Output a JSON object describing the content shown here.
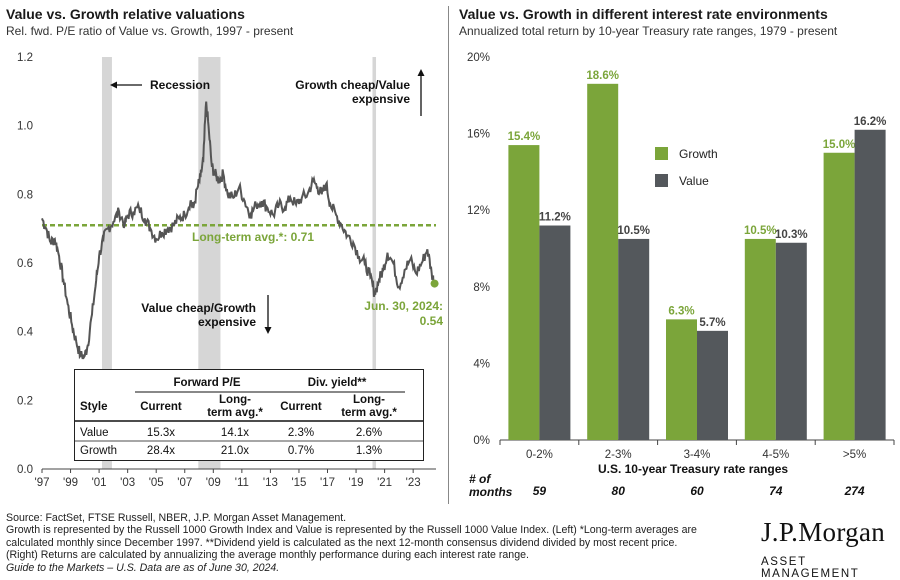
{
  "left": {
    "title": "Value vs. Growth relative valuations",
    "subtitle": "Rel. fwd. P/E ratio of Value vs. Growth, 1997 - present",
    "recession_label": "Recession",
    "growth_cheap_label": [
      "Growth cheap/Value",
      "expensive"
    ],
    "value_cheap_label": [
      "Value cheap/Growth",
      "expensive"
    ],
    "avg_label": "Long-term avg.*:  0.71",
    "current_label": [
      "Jun. 30, 2024:",
      "0.54"
    ],
    "table": {
      "group_headers": [
        "Forward P/E",
        "Div. yield**"
      ],
      "col_headers": [
        "Style",
        "Current",
        "Long-",
        "term avg.*",
        "Current",
        "Long-",
        "term avg.*"
      ],
      "rows": [
        [
          "Value",
          "15.3x",
          "14.1x",
          "2.3%",
          "2.6%"
        ],
        [
          "Growth",
          "28.4x",
          "21.0x",
          "0.7%",
          "1.3%"
        ]
      ]
    }
  },
  "right": {
    "title": "Value vs. Growth in different interest rate environments",
    "subtitle": "Annualized total return by 10-year Treasury rate ranges, 1979 - present",
    "months_label": [
      "# of",
      "months"
    ],
    "months": [
      "59",
      "80",
      "60",
      "74",
      "274"
    ]
  },
  "chart_data": [
    {
      "type": "line",
      "title": "Value vs. Growth relative valuations",
      "xlabel": "",
      "ylabel": "",
      "ylim": [
        0,
        1.2
      ],
      "yticks": [
        "0.0",
        "0.2",
        "0.4",
        "0.6",
        "0.8",
        "1.0",
        "1.2"
      ],
      "xticks": [
        "'97",
        "'99",
        "'01",
        "'03",
        "'05",
        "'07",
        "'09",
        "'11",
        "'13",
        "'15",
        "'17",
        "'19",
        "'21",
        "'23"
      ],
      "xlim": [
        1997,
        2024.6
      ],
      "recessions": [
        [
          2001.2,
          2001.9
        ],
        [
          2007.95,
          2009.5
        ],
        [
          2020.15,
          2020.4
        ]
      ],
      "long_term_avg": 0.71,
      "series": [
        {
          "color": "#555555",
          "x": [
            1997.0,
            1997.3,
            1997.6,
            1997.9,
            1998.2,
            1998.5,
            1998.8,
            1999.1,
            1999.4,
            1999.7,
            2000.0,
            2000.2,
            2000.5,
            2000.8,
            2001.0,
            2001.3,
            2001.6,
            2002.0,
            2002.4,
            2002.8,
            2003.0,
            2003.4,
            2003.8,
            2004.2,
            2004.6,
            2005.0,
            2005.4,
            2005.8,
            2006.2,
            2006.6,
            2007.0,
            2007.4,
            2007.6,
            2007.9,
            2008.1,
            2008.3,
            2008.5,
            2008.7,
            2008.9,
            2009.1,
            2009.4,
            2009.7,
            2010.0,
            2010.4,
            2010.8,
            2011.2,
            2011.6,
            2012.0,
            2012.4,
            2012.8,
            2013.2,
            2013.6,
            2014.0,
            2014.4,
            2014.8,
            2015.2,
            2015.6,
            2016.0,
            2016.3,
            2016.6,
            2016.9,
            2017.2,
            2017.6,
            2018.0,
            2018.4,
            2018.8,
            2019.2,
            2019.6,
            2020.0,
            2020.3,
            2020.6,
            2020.9,
            2021.2,
            2021.6,
            2022.0,
            2022.4,
            2022.8,
            2023.2,
            2023.6,
            2024.0,
            2024.3,
            2024.5
          ],
          "values": [
            0.73,
            0.7,
            0.66,
            0.67,
            0.62,
            0.55,
            0.48,
            0.42,
            0.37,
            0.33,
            0.33,
            0.36,
            0.45,
            0.55,
            0.62,
            0.67,
            0.7,
            0.72,
            0.75,
            0.71,
            0.74,
            0.75,
            0.76,
            0.73,
            0.7,
            0.67,
            0.69,
            0.7,
            0.71,
            0.73,
            0.74,
            0.78,
            0.76,
            0.82,
            0.85,
            0.9,
            1.07,
            0.98,
            0.88,
            0.86,
            0.84,
            0.86,
            0.8,
            0.79,
            0.82,
            0.78,
            0.74,
            0.77,
            0.78,
            0.76,
            0.74,
            0.77,
            0.76,
            0.79,
            0.77,
            0.79,
            0.8,
            0.84,
            0.82,
            0.8,
            0.83,
            0.77,
            0.74,
            0.71,
            0.68,
            0.66,
            0.62,
            0.6,
            0.56,
            0.51,
            0.55,
            0.58,
            0.63,
            0.6,
            0.53,
            0.58,
            0.61,
            0.57,
            0.6,
            0.64,
            0.57,
            0.54
          ]
        }
      ]
    },
    {
      "type": "bar",
      "title": "Value vs. Growth in different interest rate environments",
      "xlabel": "U.S. 10-year Treasury rate ranges",
      "ylabel": "",
      "ylim": [
        0,
        20
      ],
      "yticks": [
        "0%",
        "4%",
        "8%",
        "12%",
        "16%",
        "20%"
      ],
      "categories": [
        "0-2%",
        "2-3%",
        "3-4%",
        "4-5%",
        ">5%"
      ],
      "legend_position": "upper-middle",
      "series": [
        {
          "name": "Growth",
          "color": "#7ba53a",
          "values": [
            15.4,
            18.6,
            6.3,
            10.5,
            15.0
          ],
          "labels": [
            "15.4%",
            "18.6%",
            "6.3%",
            "10.5%",
            "15.0%"
          ]
        },
        {
          "name": "Value",
          "color": "#54585c",
          "values": [
            11.2,
            10.5,
            5.7,
            10.3,
            16.2
          ],
          "labels": [
            "11.2%",
            "10.5%",
            "5.7%",
            "10.3%",
            "16.2%"
          ]
        }
      ]
    }
  ],
  "footnotes": [
    "Source: FactSet, FTSE Russell, NBER, J.P. Morgan Asset Management.",
    "Growth is represented by the Russell 1000 Growth Index and Value is represented by the Russell 1000 Value Index. (Left) *Long-term averages are",
    "calculated monthly since December 1997. **Dividend yield is calculated as the next 12-month consensus dividend divided by most recent price.",
    "(Right) Returns are calculated by annualizing the average monthly performance during each interest rate range.",
    "Guide to the Markets – U.S. Data are as of June 30, 2024."
  ],
  "logo": {
    "line1": "J.P.Morgan",
    "line2": "ASSET MANAGEMENT"
  }
}
